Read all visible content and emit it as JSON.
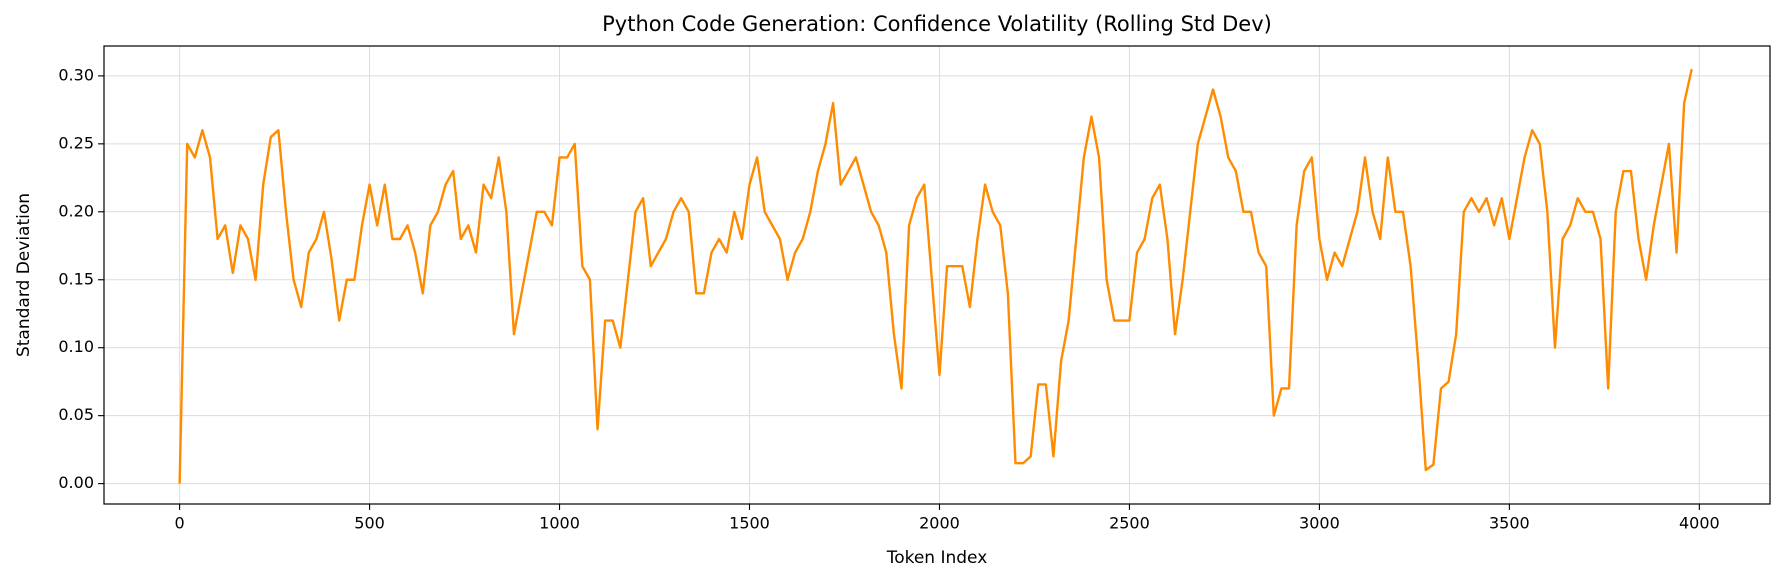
{
  "chart_data": {
    "type": "line",
    "title": "Python Code Generation: Confidence Volatility (Rolling Std Dev)",
    "x_label": "Token Index",
    "y_label": "Standard Deviation",
    "color": "#ff8c00",
    "grid": true,
    "xlim": [
      -199,
      4186
    ],
    "ylim": [
      -0.015,
      0.322
    ],
    "xticks": [
      0,
      500,
      1000,
      1500,
      2000,
      2500,
      3000,
      3500,
      4000
    ],
    "yticks": [
      {
        "value": 0,
        "label": "0.00"
      },
      {
        "value": 0.05,
        "label": "0.05"
      },
      {
        "value": 0.1,
        "label": "0.10"
      },
      {
        "value": 0.15,
        "label": "0.15"
      },
      {
        "value": 0.2,
        "label": "0.20"
      },
      {
        "value": 0.25,
        "label": "0.25"
      },
      {
        "value": 0.3,
        "label": "0.30"
      }
    ],
    "x": [
      0,
      20,
      40,
      60,
      80,
      100,
      120,
      140,
      160,
      180,
      200,
      220,
      240,
      260,
      280,
      300,
      320,
      340,
      360,
      380,
      400,
      420,
      440,
      460,
      480,
      500,
      520,
      540,
      560,
      580,
      600,
      620,
      640,
      660,
      680,
      700,
      720,
      740,
      760,
      780,
      800,
      820,
      840,
      860,
      880,
      900,
      920,
      940,
      960,
      980,
      1000,
      1020,
      1040,
      1060,
      1080,
      1100,
      1120,
      1140,
      1160,
      1180,
      1200,
      1220,
      1240,
      1260,
      1280,
      1300,
      1320,
      1340,
      1360,
      1380,
      1400,
      1420,
      1440,
      1460,
      1480,
      1500,
      1520,
      1540,
      1560,
      1580,
      1600,
      1620,
      1640,
      1660,
      1680,
      1700,
      1720,
      1740,
      1760,
      1780,
      1800,
      1820,
      1840,
      1860,
      1880,
      1900,
      1920,
      1940,
      1960,
      1980,
      2000,
      2020,
      2040,
      2060,
      2080,
      2100,
      2120,
      2140,
      2160,
      2180,
      2200,
      2220,
      2240,
      2260,
      2280,
      2300,
      2320,
      2340,
      2360,
      2380,
      2400,
      2420,
      2440,
      2460,
      2480,
      2500,
      2520,
      2540,
      2560,
      2580,
      2600,
      2620,
      2640,
      2660,
      2680,
      2700,
      2720,
      2740,
      2760,
      2780,
      2800,
      2820,
      2840,
      2860,
      2880,
      2900,
      2920,
      2940,
      2960,
      2980,
      3000,
      3020,
      3040,
      3060,
      3080,
      3100,
      3120,
      3140,
      3160,
      3180,
      3200,
      3220,
      3240,
      3260,
      3280,
      3300,
      3320,
      3340,
      3360,
      3380,
      3400,
      3420,
      3440,
      3460,
      3480,
      3500,
      3520,
      3540,
      3560,
      3580,
      3600,
      3620,
      3640,
      3660,
      3680,
      3700,
      3720,
      3740,
      3760,
      3780,
      3800,
      3820,
      3840,
      3860,
      3880,
      3900,
      3920,
      3940,
      3960,
      3980
    ],
    "values": [
      0.0,
      0.25,
      0.24,
      0.26,
      0.24,
      0.18,
      0.19,
      0.155,
      0.19,
      0.18,
      0.15,
      0.22,
      0.255,
      0.26,
      0.2,
      0.15,
      0.13,
      0.17,
      0.18,
      0.2,
      0.165,
      0.12,
      0.15,
      0.15,
      0.19,
      0.22,
      0.19,
      0.22,
      0.18,
      0.18,
      0.19,
      0.17,
      0.14,
      0.19,
      0.2,
      0.22,
      0.23,
      0.18,
      0.19,
      0.17,
      0.22,
      0.21,
      0.24,
      0.2,
      0.11,
      0.14,
      0.17,
      0.2,
      0.2,
      0.19,
      0.24,
      0.24,
      0.25,
      0.16,
      0.15,
      0.04,
      0.12,
      0.12,
      0.1,
      0.15,
      0.2,
      0.21,
      0.16,
      0.17,
      0.18,
      0.2,
      0.21,
      0.2,
      0.14,
      0.14,
      0.17,
      0.18,
      0.17,
      0.2,
      0.18,
      0.22,
      0.24,
      0.2,
      0.19,
      0.18,
      0.15,
      0.17,
      0.18,
      0.2,
      0.23,
      0.25,
      0.28,
      0.22,
      0.23,
      0.24,
      0.22,
      0.2,
      0.19,
      0.17,
      0.11,
      0.07,
      0.19,
      0.21,
      0.22,
      0.15,
      0.08,
      0.16,
      0.16,
      0.16,
      0.13,
      0.18,
      0.22,
      0.2,
      0.19,
      0.14,
      0.015,
      0.015,
      0.02,
      0.073,
      0.073,
      0.02,
      0.09,
      0.12,
      0.18,
      0.24,
      0.27,
      0.24,
      0.15,
      0.12,
      0.12,
      0.12,
      0.17,
      0.18,
      0.21,
      0.22,
      0.18,
      0.11,
      0.15,
      0.2,
      0.25,
      0.27,
      0.29,
      0.27,
      0.24,
      0.23,
      0.2,
      0.2,
      0.17,
      0.16,
      0.05,
      0.07,
      0.07,
      0.19,
      0.23,
      0.24,
      0.18,
      0.15,
      0.17,
      0.16,
      0.18,
      0.2,
      0.24,
      0.2,
      0.18,
      0.24,
      0.2,
      0.2,
      0.16,
      0.09,
      0.01,
      0.014,
      0.07,
      0.075,
      0.11,
      0.2,
      0.21,
      0.2,
      0.21,
      0.19,
      0.21,
      0.18,
      0.21,
      0.24,
      0.26,
      0.25,
      0.2,
      0.1,
      0.18,
      0.19,
      0.21,
      0.2,
      0.2,
      0.18,
      0.07,
      0.2,
      0.23,
      0.23,
      0.18,
      0.15,
      0.19,
      0.22,
      0.25,
      0.17,
      0.28,
      0.305
    ]
  }
}
